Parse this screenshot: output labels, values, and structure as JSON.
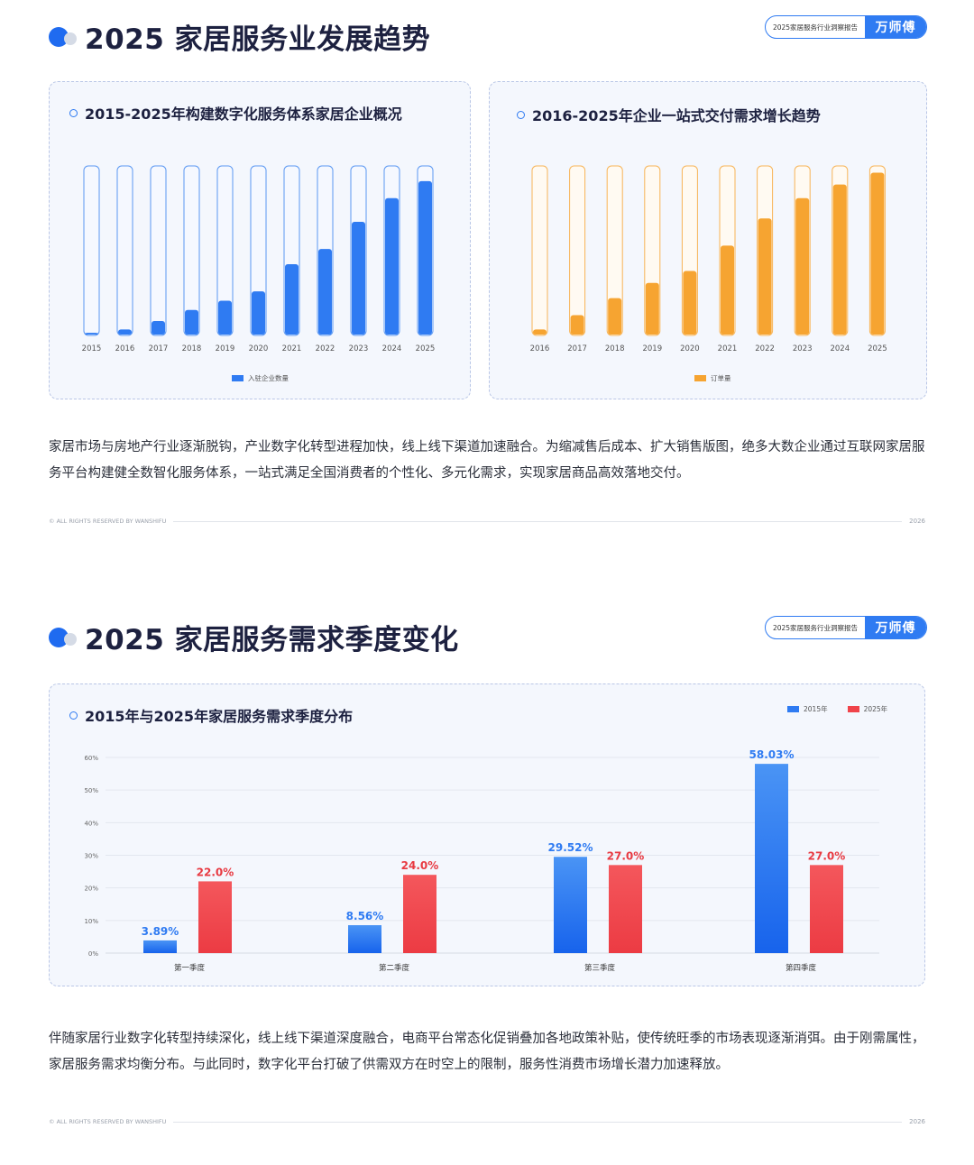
{
  "badge": {
    "report": "2025家居服务行业洞察报告",
    "brand": "万师傅"
  },
  "footer": {
    "copyright": "© ALL RIGHTS RESERVED BY WANSHIFU",
    "year": "2026"
  },
  "section1": {
    "title": "2025 家居服务业发展趋势",
    "paragraph": "家居市场与房地产行业逐渐脱钩，产业数字化转型进程加快，线上线下渠道加速融合。为缩减售后成本、扩大销售版图，绝多大数企业通过互联网家居服务平台构建健全数智化服务体系，一站式满足全国消费者的个性化、多元化需求，实现家居商品高效落地交付。"
  },
  "section2": {
    "title": "2025 家居服务需求季度变化",
    "paragraph": "伴随家居行业数字化转型持续深化，线上线下渠道深度融合，电商平台常态化促销叠加各地政策补贴，使传统旺季的市场表现逐渐消弭。由于刚需属性，家居服务需求均衡分布。与此同时，数字化平台打破了供需双方在时空上的限制，服务性消费市场增长潜力加速释放。"
  },
  "chart_data": [
    {
      "type": "bar",
      "title": "2015-2025年构建数字化服务体系家居企业概况",
      "categories": [
        "2015",
        "2016",
        "2017",
        "2018",
        "2019",
        "2020",
        "2021",
        "2022",
        "2023",
        "2024",
        "2025"
      ],
      "series": [
        {
          "name": "入驻企业数量",
          "values": [
            1.5,
            3.5,
            8.5,
            15,
            20.5,
            26,
            42,
            51,
            67,
            81,
            91
          ]
        }
      ],
      "value_unit": "% of track",
      "ylim": [
        0,
        100
      ],
      "grid": false,
      "legend": "bottom-center",
      "colors": {
        "bar": "#2f7bf2",
        "track": "#f5f8ff",
        "track_border": "#5a97f2"
      }
    },
    {
      "type": "bar",
      "title": "2016-2025年企业一站式交付需求增长趋势",
      "categories": [
        "2016",
        "2017",
        "2018",
        "2019",
        "2020",
        "2021",
        "2022",
        "2023",
        "2024",
        "2025"
      ],
      "series": [
        {
          "name": "订单量",
          "values": [
            3.5,
            12,
            22,
            31,
            38,
            53,
            69,
            81,
            89,
            96
          ]
        }
      ],
      "value_unit": "% of track",
      "ylim": [
        0,
        100
      ],
      "grid": false,
      "legend": "bottom-center",
      "colors": {
        "bar": "#f6a431",
        "track": "#fffaf2",
        "track_border": "#f7b457"
      }
    },
    {
      "type": "bar",
      "title": "2015年与2025年家居服务需求季度分布",
      "categories": [
        "第一季度",
        "第二季度",
        "第三季度",
        "第四季度"
      ],
      "series": [
        {
          "name": "2015年",
          "values": [
            3.89,
            8.56,
            29.52,
            58.03
          ],
          "labels": [
            "3.89%",
            "8.56%",
            "29.52%",
            "58.03%"
          ]
        },
        {
          "name": "2025年",
          "values": [
            22.0,
            24.0,
            27.0,
            27.0
          ],
          "labels": [
            "22.0%",
            "24.0%",
            "27.0%",
            "27.0%"
          ]
        }
      ],
      "yticks": [
        "0%",
        "10%",
        "20%",
        "30%",
        "40%",
        "50%",
        "60%"
      ],
      "ylim": [
        0,
        60
      ],
      "grid": true,
      "legend": "top-right",
      "colors": {
        "2015年": "#2f7bf2",
        "2025年": "#f0434a"
      }
    }
  ]
}
